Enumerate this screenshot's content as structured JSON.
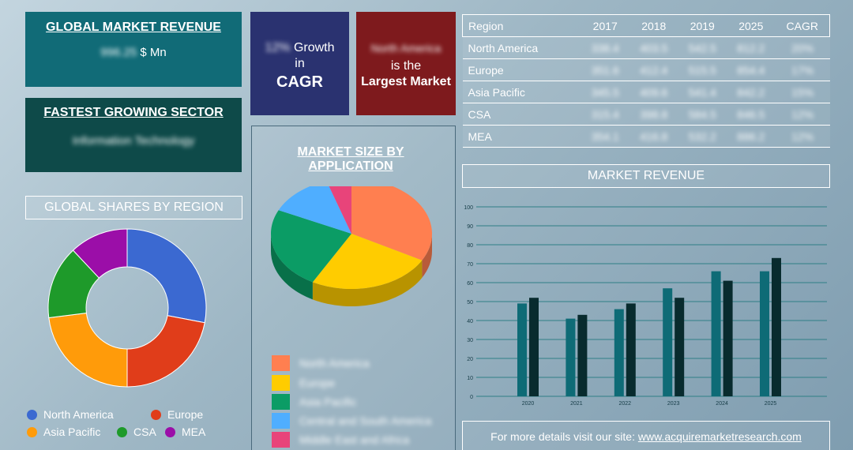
{
  "revenue": {
    "title": "GLOBAL MARKET REVENUE",
    "value": "996.25",
    "unit": "$ Mn"
  },
  "sector": {
    "title": "FASTEST GROWING SECTOR",
    "value": "Information Technology"
  },
  "cagr": {
    "value": "12%",
    "growth_label": "Growth",
    "in_label": "in",
    "cagr_label": "CAGR"
  },
  "largest": {
    "region": "North America",
    "is_the": "is the",
    "label": "Largest Market"
  },
  "region_shares": {
    "title": "GLOBAL SHARES BY REGION",
    "legend": [
      "North America",
      "Europe",
      "Asia Pacific",
      "CSA",
      "MEA"
    ]
  },
  "application": {
    "title": "MARKET SIZE BY APPLICATION",
    "legend": [
      "North America",
      "Europe",
      "Asia Pacific",
      "Central and South America",
      "Middle East and Africa"
    ]
  },
  "table": {
    "headers": [
      "Region",
      "2017",
      "2018",
      "2019",
      "2025",
      "CAGR"
    ],
    "rows": [
      [
        "North America",
        "338.4",
        "403.5",
        "542.5",
        "812.2",
        "20%"
      ],
      [
        "Europe",
        "351.6",
        "412.4",
        "515.5",
        "854.4",
        "17%"
      ],
      [
        "Asia Pacific",
        "345.5",
        "409.6",
        "541.4",
        "842.2",
        "15%"
      ],
      [
        "CSA",
        "315.4",
        "398.8",
        "584.5",
        "846.5",
        "12%"
      ],
      [
        "MEA",
        "354.1",
        "416.8",
        "532.2",
        "886.2",
        "12%"
      ]
    ]
  },
  "market_revenue": {
    "title": "MARKET REVENUE"
  },
  "footer": {
    "text": "For more details visit our site:",
    "link": "www.acquiremarketresearch.com"
  },
  "colors": {
    "north_america": "#3b69d1",
    "europe": "#e03d1a",
    "asia_pacific": "#ff9b0a",
    "csa": "#1e9a2a",
    "mea": "#9b0ea8",
    "app": [
      "#ff7f50",
      "#ffcc00",
      "#0b9c65",
      "#4faeff",
      "#e8447a"
    ],
    "bar_a": "#0e6b76",
    "bar_b": "#082b2e"
  },
  "chart_data": [
    {
      "type": "pie",
      "title": "GLOBAL SHARES BY REGION",
      "categories": [
        "North America",
        "Europe",
        "Asia Pacific",
        "CSA",
        "MEA"
      ],
      "values": [
        28,
        22,
        23,
        15,
        12
      ]
    },
    {
      "type": "pie",
      "title": "MARKET SIZE BY APPLICATION",
      "categories": [
        "North America",
        "Europe",
        "Asia Pacific",
        "Central and South America",
        "Middle East and Africa"
      ],
      "values": [
        33,
        25,
        24,
        13,
        5
      ]
    },
    {
      "type": "bar",
      "title": "MARKET REVENUE",
      "categories": [
        "2020",
        "2021",
        "2022",
        "2023",
        "2024",
        "2025"
      ],
      "series": [
        {
          "values": [
            49,
            41,
            46,
            57,
            66,
            66
          ]
        },
        {
          "values": [
            52,
            43,
            49,
            52,
            61,
            73
          ]
        }
      ],
      "ylim": [
        0,
        100
      ],
      "yticks": [
        0,
        10,
        20,
        30,
        40,
        50,
        60,
        70,
        80,
        90,
        100
      ],
      "grid": true
    }
  ]
}
